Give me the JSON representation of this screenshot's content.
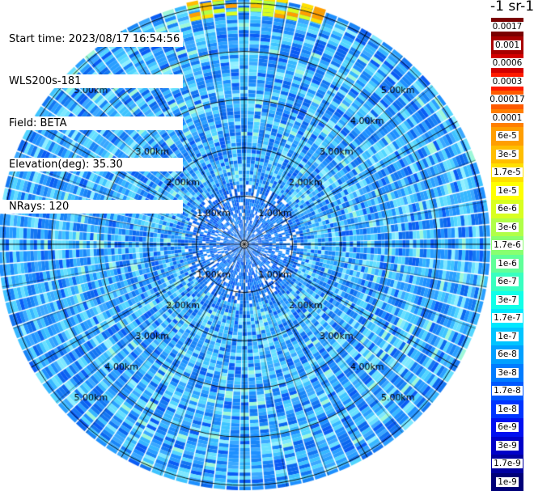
{
  "info": {
    "start_time": "Start time: 2023/08/17 16:54:56",
    "instrument": "WLS200s-181",
    "field": "Field: BETA",
    "elevation": "Elevation(deg): 35.30",
    "nrays": "NRays: 120"
  },
  "colorbar": {
    "unit_title": "-1 sr-1",
    "entries": [
      {
        "label": "0.0017",
        "color": "#7a0000"
      },
      {
        "label": "0.001",
        "color": "#a80000"
      },
      {
        "label": "0.0006",
        "color": "#d20000"
      },
      {
        "label": "0.0003",
        "color": "#ff1a00"
      },
      {
        "label": "0.00017",
        "color": "#ff5a00"
      },
      {
        "label": "0.0001",
        "color": "#ff7f00"
      },
      {
        "label": "6e-5",
        "color": "#ff9e00"
      },
      {
        "label": "3e-5",
        "color": "#ffbe00"
      },
      {
        "label": "1.7e-5",
        "color": "#ffe000"
      },
      {
        "label": "1e-5",
        "color": "#ffff00"
      },
      {
        "label": "6e-6",
        "color": "#d8ff20"
      },
      {
        "label": "3e-6",
        "color": "#b0ff48"
      },
      {
        "label": "1.7e-6",
        "color": "#88ff70"
      },
      {
        "label": "1e-6",
        "color": "#60ff98"
      },
      {
        "label": "6e-7",
        "color": "#38ffc0"
      },
      {
        "label": "3e-7",
        "color": "#10ffe8"
      },
      {
        "label": "1.7e-7",
        "color": "#00e8ff"
      },
      {
        "label": "1e-7",
        "color": "#00c4ff"
      },
      {
        "label": "6e-8",
        "color": "#00a0ff"
      },
      {
        "label": "3e-8",
        "color": "#007cff"
      },
      {
        "label": "1.7e-8",
        "color": "#0058ff"
      },
      {
        "label": "1e-8",
        "color": "#0034ff"
      },
      {
        "label": "6e-9",
        "color": "#0010f0"
      },
      {
        "label": "3e-9",
        "color": "#0000c8"
      },
      {
        "label": "1.7e-9",
        "color": "#0000a0"
      },
      {
        "label": "1e-9",
        "color": "#000078"
      }
    ]
  },
  "chart_data": {
    "type": "heatmap",
    "projection": "polar",
    "field": "BETA",
    "n_rays": 120,
    "range_rings_km": [
      1,
      2,
      3,
      4,
      5
    ],
    "ring_labels": [
      "1.00km",
      "2.00km",
      "3.00km",
      "4.00km",
      "5.00km"
    ],
    "max_range_km": 5.1,
    "dominant_value": "3e-8",
    "value_range": [
      "1e-9",
      "0.0017"
    ],
    "notes": "Values mostly 1.7e-8 to 1e-7; higher values (1.7e-5 to 6e-5) in a band at the far north edge; sparse near-zero returns near center."
  },
  "colors": {
    "background": "#ffffff",
    "grid": "#000000"
  }
}
